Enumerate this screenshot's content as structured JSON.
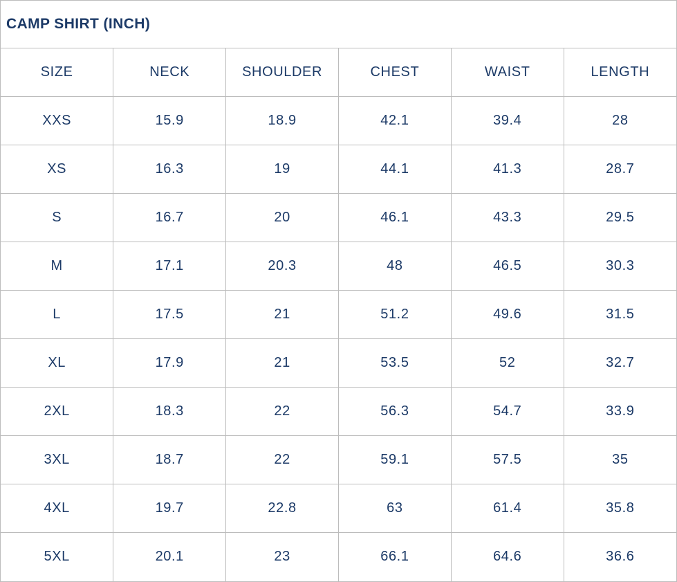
{
  "colors": {
    "text_navy": "#1c3a67",
    "grid_border": "#bcbcbc",
    "background": "#ffffff"
  },
  "chart_data": {
    "type": "table",
    "title": "CAMP SHIRT (INCH)",
    "unit": "inch",
    "columns": [
      "SIZE",
      "NECK",
      "SHOULDER",
      "CHEST",
      "WAIST",
      "LENGTH"
    ],
    "rows": [
      [
        "XXS",
        15.9,
        18.9,
        42.1,
        39.4,
        28
      ],
      [
        "XS",
        16.3,
        19,
        44.1,
        41.3,
        28.7
      ],
      [
        "S",
        16.7,
        20,
        46.1,
        43.3,
        29.5
      ],
      [
        "M",
        17.1,
        20.3,
        48,
        46.5,
        30.3
      ],
      [
        "L",
        17.5,
        21,
        51.2,
        49.6,
        31.5
      ],
      [
        "XL",
        17.9,
        21,
        53.5,
        52,
        32.7
      ],
      [
        "2XL",
        18.3,
        22,
        56.3,
        54.7,
        33.9
      ],
      [
        "3XL",
        18.7,
        22,
        59.1,
        57.5,
        35
      ],
      [
        "4XL",
        19.7,
        22.8,
        63,
        61.4,
        35.8
      ],
      [
        "5XL",
        20.1,
        23,
        66.1,
        64.6,
        36.6
      ]
    ]
  }
}
